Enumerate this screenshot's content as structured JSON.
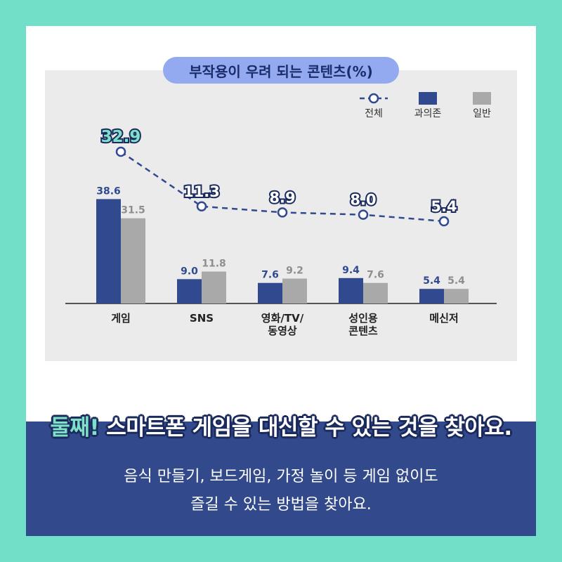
{
  "chart_data": {
    "type": "bar",
    "title": "부작용이 우려 되는 콘텐츠(%)",
    "categories": [
      [
        "게임"
      ],
      [
        "SNS"
      ],
      [
        "영화/TV/",
        "동영상"
      ],
      [
        "성인용",
        "콘텐츠"
      ],
      [
        "메신저"
      ]
    ],
    "series": [
      {
        "name": "과의존",
        "type": "bar",
        "color": "#314a8f",
        "values": [
          38.6,
          9.0,
          7.6,
          9.4,
          5.4
        ]
      },
      {
        "name": "일반",
        "type": "bar",
        "color": "#a9a9a9",
        "values": [
          31.5,
          11.8,
          9.2,
          7.6,
          5.4
        ]
      },
      {
        "name": "전체",
        "type": "line",
        "color": "#314a8f",
        "values": [
          32.9,
          11.3,
          8.9,
          8.0,
          5.4
        ]
      }
    ],
    "legend_placement": "top-right",
    "grid": false
  },
  "colors": {
    "background": "#72dfc8",
    "banner": "#324a8c",
    "accent": "#7ee0c8"
  },
  "banner": {
    "headline_accent": "둘째!",
    "headline_rest": " 스마트폰 게임을 대신할 수 있는 것을 찾아요.",
    "line1": "음식 만들기, 보드게임, 가정 놀이 등 게임 없이도",
    "line2": "즐길 수 있는 방법을 찾아요."
  }
}
